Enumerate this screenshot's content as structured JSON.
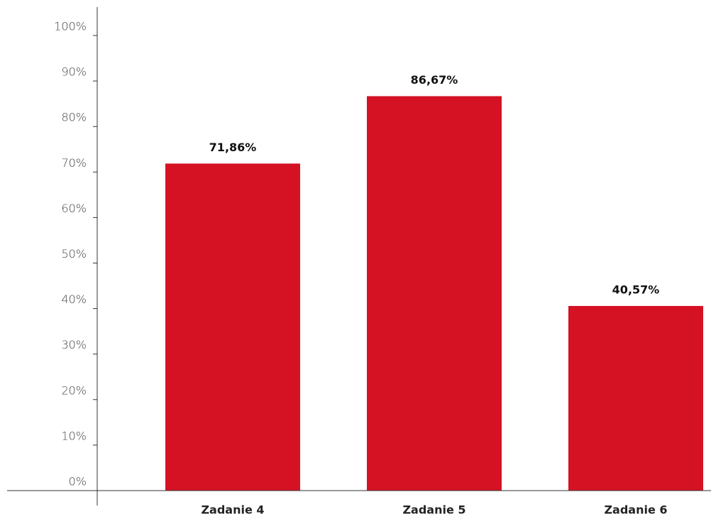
{
  "chart_data": {
    "type": "bar",
    "categories": [
      "Zadanie 4",
      "Zadanie 5",
      "Zadanie 6"
    ],
    "values": [
      71.86,
      86.67,
      40.57
    ],
    "value_labels": [
      "71,86%",
      "86,67%",
      "40,57%"
    ],
    "color": "#d51224",
    "ylim": [
      0,
      100
    ],
    "yticks": [
      {
        "value": 0,
        "label": "0%"
      },
      {
        "value": 10,
        "label": "10%"
      },
      {
        "value": 20,
        "label": "20%"
      },
      {
        "value": 30,
        "label": "30%"
      },
      {
        "value": 40,
        "label": "40%"
      },
      {
        "value": 50,
        "label": "50%"
      },
      {
        "value": 60,
        "label": "60%"
      },
      {
        "value": 70,
        "label": "70%"
      },
      {
        "value": 80,
        "label": "80%"
      },
      {
        "value": 90,
        "label": "90%"
      },
      {
        "value": 100,
        "label": "100%"
      }
    ]
  }
}
